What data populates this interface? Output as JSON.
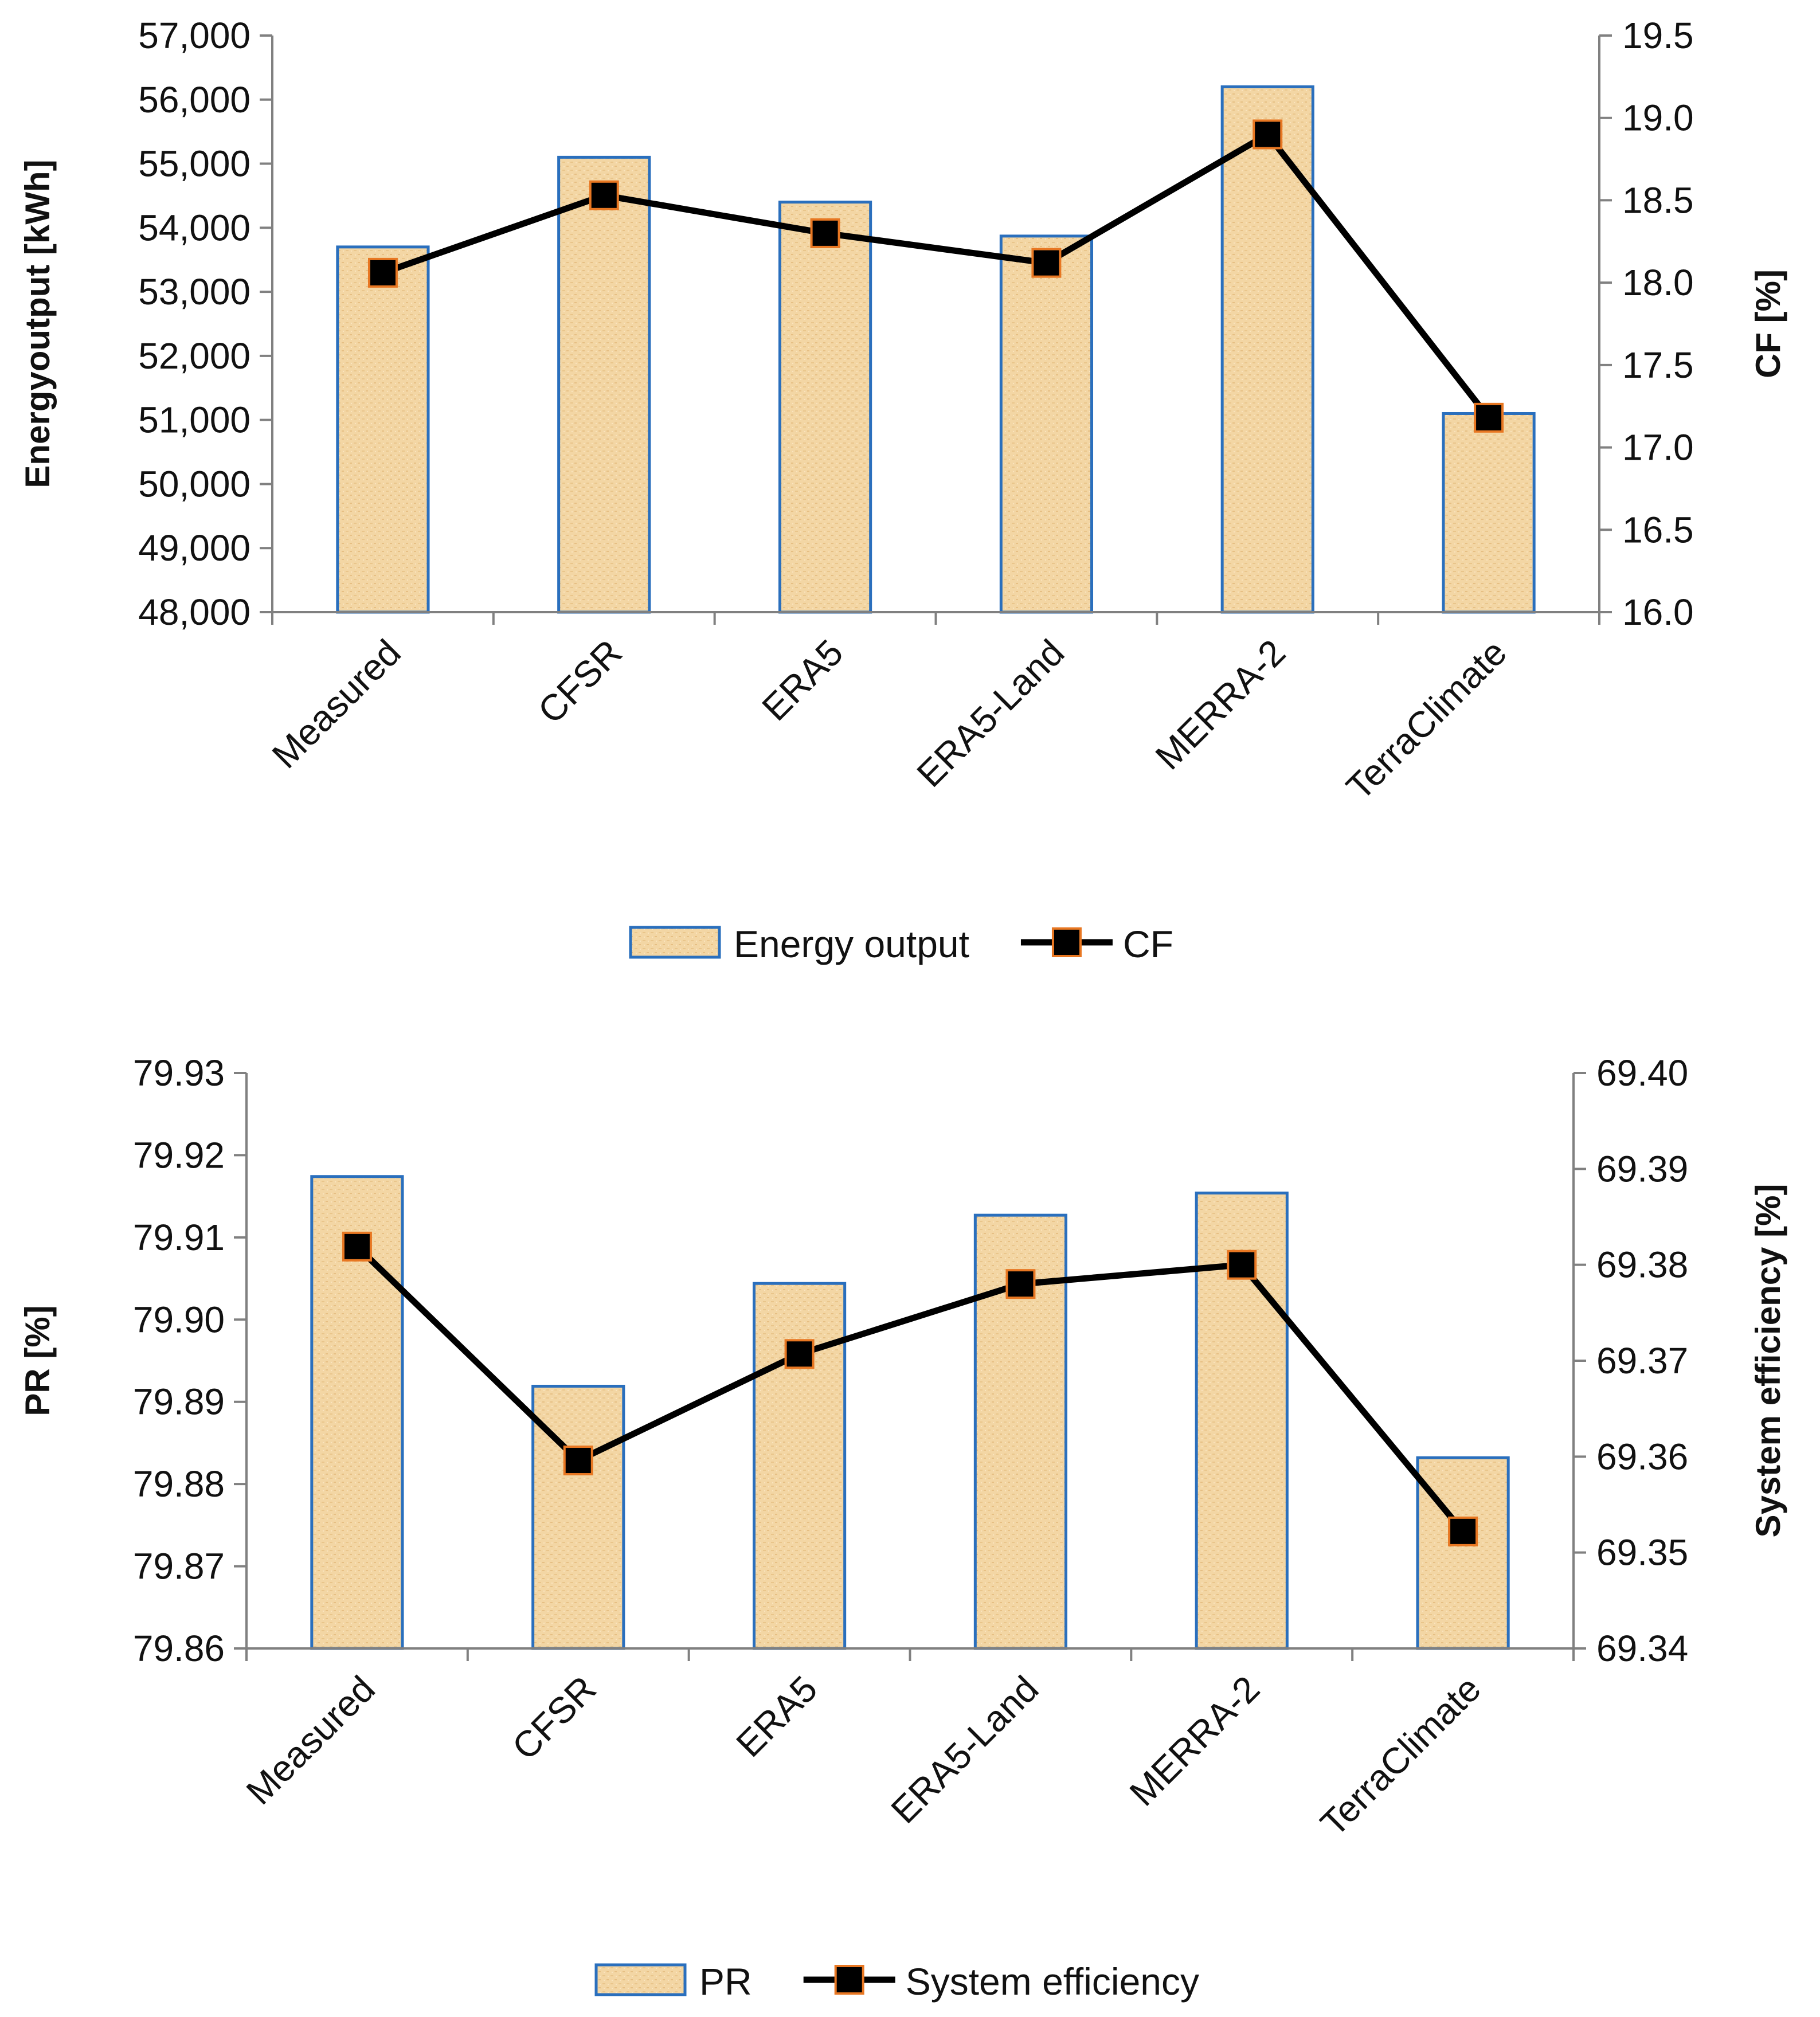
{
  "chart_data": [
    {
      "type": "bar+line",
      "title": "",
      "categories": [
        "Measured",
        "CFSR",
        "ERA5",
        "ERA5-Land",
        "MERRA-2",
        "TerraClimate"
      ],
      "bar_series": {
        "name": "Energy output",
        "values": [
          53700,
          55100,
          54400,
          53870,
          56200,
          51100
        ]
      },
      "line_series": {
        "name": "CF",
        "values": [
          18.06,
          18.53,
          18.3,
          18.12,
          18.9,
          17.18
        ]
      },
      "ylabel_left": "Energyoutput [kWh]",
      "ylabel_right": "CF [%]",
      "ylim_left": [
        48000,
        57000
      ],
      "ylim_right": [
        16.0,
        19.5
      ],
      "left_ticks": [
        "48,000",
        "49,000",
        "50,000",
        "51,000",
        "52,000",
        "53,000",
        "54,000",
        "55,000",
        "56,000",
        "57,000"
      ],
      "right_ticks": [
        "16.0",
        "16.5",
        "17.0",
        "17.5",
        "18.0",
        "18.5",
        "19.0",
        "19.5"
      ],
      "legend": [
        "Energy output",
        "CF"
      ],
      "grid": false,
      "legend_position": "bottom"
    },
    {
      "type": "bar+line",
      "title": "",
      "categories": [
        "Measured",
        "CFSR",
        "ERA5",
        "ERA5-Land",
        "MERRA-2",
        "TerraClimate"
      ],
      "bar_series": {
        "name": "PR",
        "values": [
          79.9174,
          79.8919,
          79.9044,
          79.9127,
          79.9154,
          79.8832
        ]
      },
      "line_series": {
        "name": "System efficiency",
        "values": [
          69.3819,
          69.3596,
          69.3707,
          69.378,
          69.38,
          69.3522
        ]
      },
      "ylabel_left": "PR [%]",
      "ylabel_right": "System efficiency [%]",
      "ylim_left": [
        79.86,
        79.93
      ],
      "ylim_right": [
        69.34,
        69.4
      ],
      "left_ticks": [
        "79.86",
        "79.87",
        "79.88",
        "79.89",
        "79.90",
        "79.91",
        "79.92",
        "79.93"
      ],
      "right_ticks": [
        "69.34",
        "69.35",
        "69.36",
        "69.37",
        "69.38",
        "69.39",
        "69.40"
      ],
      "legend": [
        "PR",
        "System efficiency"
      ],
      "grid": false,
      "legend_position": "bottom"
    }
  ],
  "colors": {
    "bar_fill": "#f3d6a4",
    "bar_hatch": "#e2b878",
    "bar_edge": "#2a6fbd",
    "line": "#000000",
    "marker_fill": "#000000",
    "marker_edge": "#e87722",
    "axis": "#808080"
  }
}
